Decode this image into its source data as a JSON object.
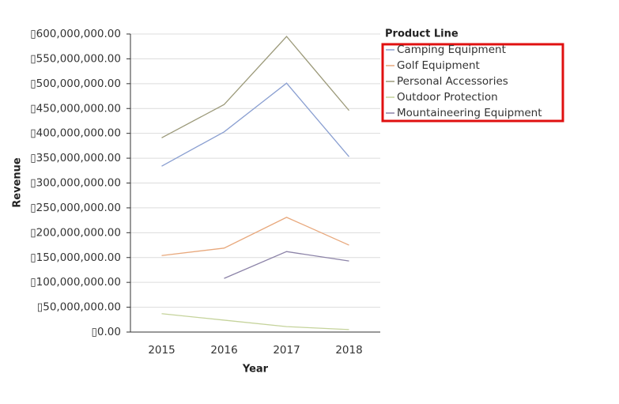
{
  "chart_data": {
    "type": "line",
    "x_label": "Year",
    "y_label": "Revenue",
    "legend_title": "Product Line",
    "categories": [
      "2015",
      "2016",
      "2017",
      "2018"
    ],
    "series": [
      {
        "name": "Camping Equipment",
        "color": "#8a9fd1",
        "values": [
          334000000,
          403000000,
          501000000,
          353000000
        ]
      },
      {
        "name": "Golf Equipment",
        "color": "#e8a87c",
        "values": [
          154000000,
          169000000,
          231000000,
          175000000
        ]
      },
      {
        "name": "Personal Accessories",
        "color": "#9c9a7a",
        "values": [
          391000000,
          458000000,
          595000000,
          446000000
        ]
      },
      {
        "name": "Outdoor Protection",
        "color": "#c5d39b",
        "values": [
          37000000,
          24000000,
          11000000,
          5000000
        ]
      },
      {
        "name": "Mountaineering Equipment",
        "color": "#8c83a8",
        "values": [
          null,
          108000000,
          162000000,
          143000000
        ]
      }
    ],
    "ylim": [
      0,
      600000000
    ],
    "yticks": [
      {
        "value": 0,
        "label": "▯0.00"
      },
      {
        "value": 50000000,
        "label": "▯50,000,000.00"
      },
      {
        "value": 100000000,
        "label": "▯100,000,000.00"
      },
      {
        "value": 150000000,
        "label": "▯150,000,000.00"
      },
      {
        "value": 200000000,
        "label": "▯200,000,000.00"
      },
      {
        "value": 250000000,
        "label": "▯250,000,000.00"
      },
      {
        "value": 300000000,
        "label": "▯300,000,000.00"
      },
      {
        "value": 350000000,
        "label": "▯350,000,000.00"
      },
      {
        "value": 400000000,
        "label": "▯400,000,000.00"
      },
      {
        "value": 450000000,
        "label": "▯450,000,000.00"
      },
      {
        "value": 500000000,
        "label": "▯500,000,000.00"
      },
      {
        "value": 550000000,
        "label": "▯550,000,000.00"
      },
      {
        "value": 600000000,
        "label": "▯600,000,000.00"
      }
    ],
    "grid": true
  }
}
